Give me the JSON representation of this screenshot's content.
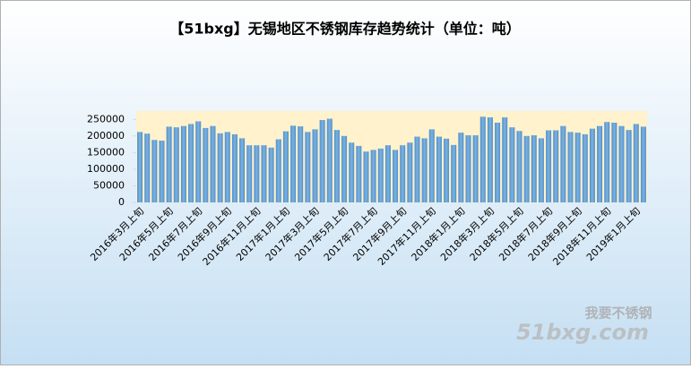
{
  "chart_data": {
    "type": "bar",
    "title": "【51bxg】无锡地区不锈钢库存趋势统计（单位：吨）",
    "categories": [
      "2016年3月上旬",
      null,
      null,
      null,
      "2016年5月上旬",
      null,
      null,
      null,
      "2016年7月上旬",
      null,
      null,
      null,
      "2016年9月上旬",
      null,
      null,
      null,
      "2016年11月上旬",
      null,
      null,
      null,
      "2017年1月上旬",
      null,
      null,
      null,
      "2017年3月上旬",
      null,
      null,
      null,
      "2017年5月上旬",
      null,
      null,
      null,
      "2017年7月上旬",
      null,
      null,
      null,
      "2017年9月上旬",
      null,
      null,
      null,
      "2017年11月上旬",
      null,
      null,
      null,
      "2018年1月上旬",
      null,
      null,
      null,
      "2018年3月上旬",
      null,
      null,
      null,
      "2018年5月上旬",
      null,
      null,
      null,
      "2018年7月上旬",
      null,
      null,
      null,
      "2018年9月上旬",
      null,
      null,
      null,
      "2018年11月上旬",
      null,
      null,
      null,
      "2019年1月上旬",
      null
    ],
    "values": [
      212000,
      207000,
      188000,
      186000,
      228000,
      226000,
      230000,
      236000,
      244000,
      224000,
      230000,
      208000,
      212000,
      205000,
      193000,
      172000,
      172000,
      172000,
      165000,
      190000,
      214000,
      231000,
      229000,
      212000,
      220000,
      248000,
      252000,
      218000,
      200000,
      180000,
      170000,
      153000,
      158000,
      162000,
      172000,
      158000,
      172000,
      180000,
      198000,
      193000,
      220000,
      198000,
      192000,
      173000,
      210000,
      202000,
      202000,
      258000,
      256000,
      240000,
      256000,
      226000,
      215000,
      200000,
      202000,
      193000,
      217000,
      217000,
      230000,
      212000,
      210000,
      205000,
      222000,
      230000,
      242000,
      240000,
      230000,
      218000,
      236000,
      228000
    ],
    "color": "#5b9bd5",
    "ylim": [
      0,
      275000
    ],
    "yticks": [
      0,
      50000,
      100000,
      150000,
      200000,
      250000
    ],
    "grid": false,
    "watermark": [
      "我要不锈钢",
      "51bxg.com"
    ]
  }
}
